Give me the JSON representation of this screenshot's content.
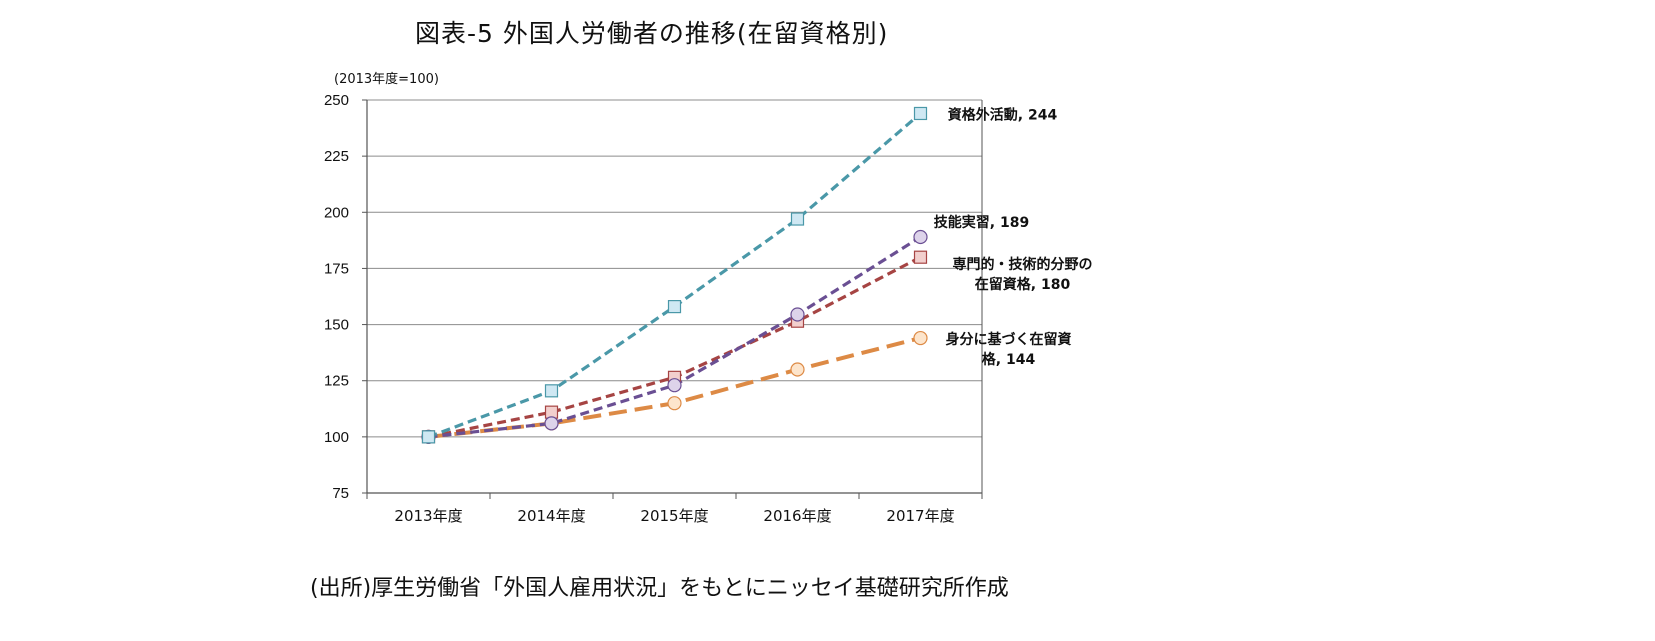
{
  "title": "図表-5 外国人労働者の推移(在留資格別)",
  "source": "(出所)厚生労働省「外国人雇用状況」をもとにニッセイ基礎研究所作成",
  "chart_data": {
    "type": "line",
    "unit_note": "(2013年度=100)",
    "categories": [
      "2013年度",
      "2014年度",
      "2015年度",
      "2016年度",
      "2017年度"
    ],
    "ylim": [
      75,
      250
    ],
    "yticks": [
      75,
      100,
      125,
      150,
      175,
      200,
      225,
      250
    ],
    "grid": true,
    "series": [
      {
        "name": "資格外活動",
        "values": [
          100,
          120.5,
          158,
          197,
          244
        ],
        "color": "#4a98a8",
        "marker": "square",
        "marker_fill": "#cfe8f3",
        "label_lines": [
          "資格外活動, 244"
        ]
      },
      {
        "name": "技能実習",
        "values": [
          100,
          106,
          123,
          154.5,
          189
        ],
        "color": "#6a4f93",
        "marker": "circle",
        "marker_fill": "#ddd3ea",
        "label_lines": [
          "技能実習, 189"
        ]
      },
      {
        "name": "専門的・技術的分野の在留資格",
        "values": [
          100,
          111,
          126.5,
          151.5,
          180
        ],
        "color": "#a64443",
        "marker": "square",
        "marker_fill": "#f2cfcd",
        "label_lines": [
          "専門的・技術的分野の",
          "在留資格, 180"
        ]
      },
      {
        "name": "身分に基づく在留資格",
        "values": [
          100,
          106,
          115,
          130,
          144
        ],
        "color": "#dd8a45",
        "marker": "circle",
        "marker_fill": "#fde5cc",
        "label_lines": [
          "身分に基づく在留資",
          "格, 144"
        ]
      }
    ]
  }
}
